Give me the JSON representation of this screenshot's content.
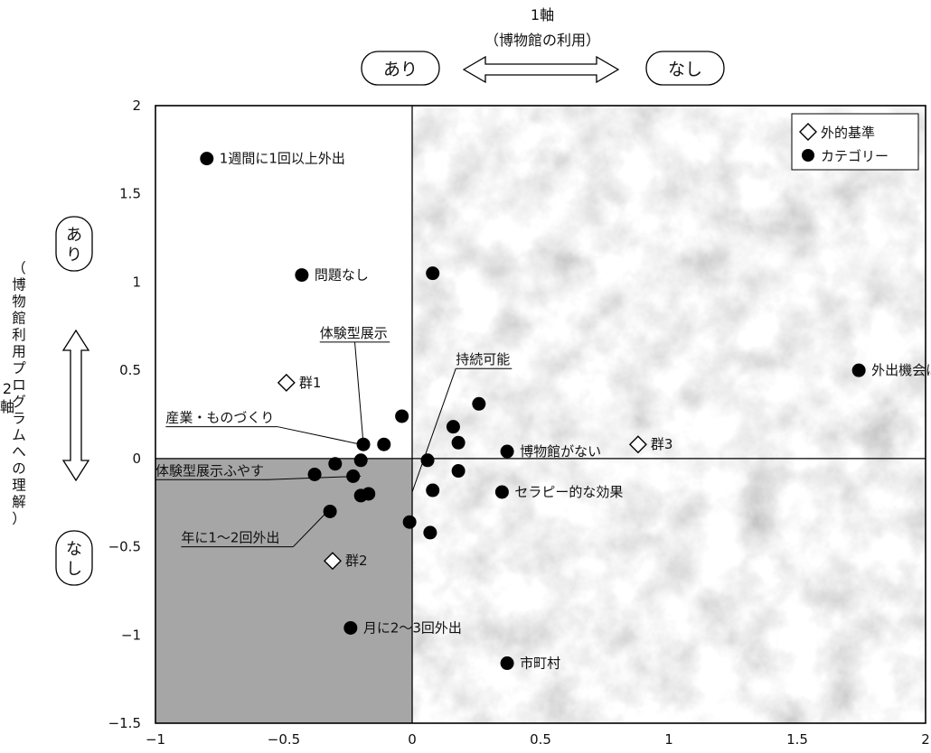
{
  "colors": {
    "plot_bg": "#ffffff",
    "marble": "#e2e2e2",
    "q3": "#a6a6a6",
    "marker": "#000000"
  },
  "axis1": {
    "title": "1軸",
    "subtitle": "（博物館の利用）",
    "pos_label": "なし",
    "neg_label": "あり"
  },
  "axis2": {
    "title": "2軸",
    "subtitle": "（博物館利用プログラムへの理解）",
    "pos_label": "あり",
    "neg_label": "なし"
  },
  "chart_data": {
    "type": "scatter",
    "xlim": [
      -1,
      2
    ],
    "ylim": [
      -1.5,
      2
    ],
    "x_ticks": [
      -1,
      -0.5,
      0,
      0.5,
      1,
      1.5,
      2
    ],
    "y_ticks": [
      -1.5,
      -1,
      -0.5,
      0,
      0.5,
      1,
      1.5,
      2
    ],
    "x_tick_labels": [
      "−1",
      "−0.5",
      "0",
      "0.5",
      "1",
      "1.5",
      "2"
    ],
    "y_tick_labels": [
      "−1.5",
      "−1",
      "−0.5",
      "0",
      "0.5",
      "1",
      "1.5",
      "2"
    ],
    "grid": false,
    "legend": {
      "placement": "top-right",
      "entries": [
        {
          "name": "外的基準",
          "marker": "diamond-open"
        },
        {
          "name": "カテゴリー",
          "marker": "circle-filled"
        }
      ]
    },
    "series": [
      {
        "name": "外的基準",
        "marker": "diamond-open",
        "points": [
          {
            "x": -0.49,
            "y": 0.43,
            "label": "群1"
          },
          {
            "x": -0.31,
            "y": -0.58,
            "label": "群2"
          },
          {
            "x": 0.88,
            "y": 0.08,
            "label": "群3"
          }
        ]
      },
      {
        "name": "カテゴリー",
        "marker": "circle-filled",
        "points": [
          {
            "x": -0.8,
            "y": 1.7,
            "label": "1週間に1回以上外出"
          },
          {
            "x": -0.43,
            "y": 1.04,
            "label": "問題なし"
          },
          {
            "x": 0.08,
            "y": 1.05
          },
          {
            "x": 1.74,
            "y": 0.5,
            "label": "外出機会は殆どない"
          },
          {
            "x": -0.04,
            "y": 0.24
          },
          {
            "x": 0.26,
            "y": 0.31
          },
          {
            "x": 0.16,
            "y": 0.18
          },
          {
            "x": 0.18,
            "y": 0.09
          },
          {
            "x": 0.37,
            "y": 0.04,
            "label": "博物館がない"
          },
          {
            "x": -0.19,
            "y": 0.08
          },
          {
            "x": -0.11,
            "y": 0.08
          },
          {
            "x": -0.2,
            "y": -0.01
          },
          {
            "x": -0.3,
            "y": -0.03
          },
          {
            "x": -0.38,
            "y": -0.09
          },
          {
            "x": -0.23,
            "y": -0.1
          },
          {
            "x": -0.2,
            "y": -0.21
          },
          {
            "x": -0.17,
            "y": -0.2
          },
          {
            "x": 0.06,
            "y": -0.01
          },
          {
            "x": 0.18,
            "y": -0.07
          },
          {
            "x": 0.08,
            "y": -0.18
          },
          {
            "x": 0.35,
            "y": -0.19,
            "label": "セラピー的な効果"
          },
          {
            "x": -0.32,
            "y": -0.3
          },
          {
            "x": -0.01,
            "y": -0.36
          },
          {
            "x": 0.07,
            "y": -0.42
          },
          {
            "x": -0.24,
            "y": -0.96,
            "label": "月に2～3回外出"
          },
          {
            "x": 0.37,
            "y": -1.16,
            "label": "市町村"
          }
        ]
      }
    ],
    "annotations": [
      {
        "text": "体験型展示",
        "x": -0.36,
        "y": 0.66,
        "target": {
          "x": -0.19,
          "y": 0.08
        }
      },
      {
        "text": "持続可能",
        "x": 0.17,
        "y": 0.51,
        "target": {
          "x": 0.0,
          "y": -0.19
        }
      },
      {
        "text": "産業・ものづくり",
        "x": -0.96,
        "y": 0.18,
        "target": {
          "x": -0.2,
          "y": 0.08
        }
      },
      {
        "text": "体験型展示ふやす",
        "x": -1.0,
        "y": -0.12,
        "target": {
          "x": -0.2,
          "y": -0.1
        }
      },
      {
        "text": "年に1～2回外出",
        "x": -0.9,
        "y": -0.5,
        "target": {
          "x": -0.33,
          "y": -0.3
        }
      }
    ]
  }
}
